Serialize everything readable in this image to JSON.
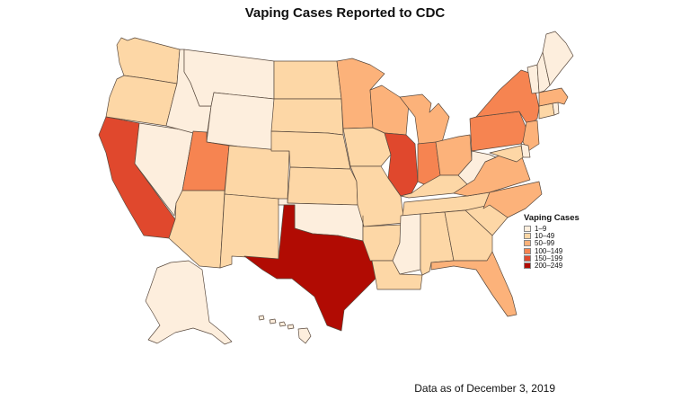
{
  "title": "Vaping Cases Reported to CDC",
  "footnote": "Data as of December 3, 2019",
  "legend": {
    "title": "Vaping Cases",
    "items": [
      {
        "label": "1–9",
        "color": "#fdeedd"
      },
      {
        "label": "10–49",
        "color": "#fdd7a6"
      },
      {
        "label": "50–99",
        "color": "#fcb27a"
      },
      {
        "label": "100–149",
        "color": "#f68451"
      },
      {
        "label": "150–199",
        "color": "#e0482d"
      },
      {
        "label": "200–249",
        "color": "#b10b03"
      }
    ]
  },
  "regions": [
    {
      "name": "Washington",
      "bin": 1
    },
    {
      "name": "Oregon",
      "bin": 1
    },
    {
      "name": "California",
      "bin": 4
    },
    {
      "name": "Nevada",
      "bin": 0
    },
    {
      "name": "Idaho",
      "bin": 0
    },
    {
      "name": "Montana",
      "bin": 0
    },
    {
      "name": "Wyoming",
      "bin": 0
    },
    {
      "name": "Utah",
      "bin": 3
    },
    {
      "name": "Arizona",
      "bin": 1
    },
    {
      "name": "Colorado",
      "bin": 1
    },
    {
      "name": "New Mexico",
      "bin": 1
    },
    {
      "name": "North Dakota",
      "bin": 1
    },
    {
      "name": "South Dakota",
      "bin": 1
    },
    {
      "name": "Nebraska",
      "bin": 1
    },
    {
      "name": "Kansas",
      "bin": 1
    },
    {
      "name": "Oklahoma",
      "bin": 0
    },
    {
      "name": "Texas",
      "bin": 5
    },
    {
      "name": "Minnesota",
      "bin": 2
    },
    {
      "name": "Iowa",
      "bin": 1
    },
    {
      "name": "Missouri",
      "bin": 1
    },
    {
      "name": "Arkansas",
      "bin": 1
    },
    {
      "name": "Louisiana",
      "bin": 1
    },
    {
      "name": "Wisconsin",
      "bin": 2
    },
    {
      "name": "Illinois",
      "bin": 4
    },
    {
      "name": "Michigan",
      "bin": 2
    },
    {
      "name": "Indiana",
      "bin": 3
    },
    {
      "name": "Ohio",
      "bin": 2
    },
    {
      "name": "Kentucky",
      "bin": 1
    },
    {
      "name": "Tennessee",
      "bin": 1
    },
    {
      "name": "Mississippi",
      "bin": 0
    },
    {
      "name": "Alabama",
      "bin": 1
    },
    {
      "name": "Georgia",
      "bin": 1
    },
    {
      "name": "Florida",
      "bin": 2
    },
    {
      "name": "South Carolina",
      "bin": 1
    },
    {
      "name": "North Carolina",
      "bin": 2
    },
    {
      "name": "Virginia",
      "bin": 2
    },
    {
      "name": "West Virginia",
      "bin": 0
    },
    {
      "name": "Pennsylvania",
      "bin": 3
    },
    {
      "name": "New York",
      "bin": 3
    },
    {
      "name": "New Jersey",
      "bin": 2
    },
    {
      "name": "Delaware",
      "bin": 0
    },
    {
      "name": "Maryland",
      "bin": 1
    },
    {
      "name": "Connecticut",
      "bin": 1
    },
    {
      "name": "Rhode Island",
      "bin": 0
    },
    {
      "name": "Massachusetts",
      "bin": 2
    },
    {
      "name": "Vermont",
      "bin": 0
    },
    {
      "name": "New Hampshire",
      "bin": 0
    },
    {
      "name": "Maine",
      "bin": 0
    },
    {
      "name": "Alaska",
      "bin": 0
    },
    {
      "name": "Hawaii",
      "bin": 0
    }
  ]
}
